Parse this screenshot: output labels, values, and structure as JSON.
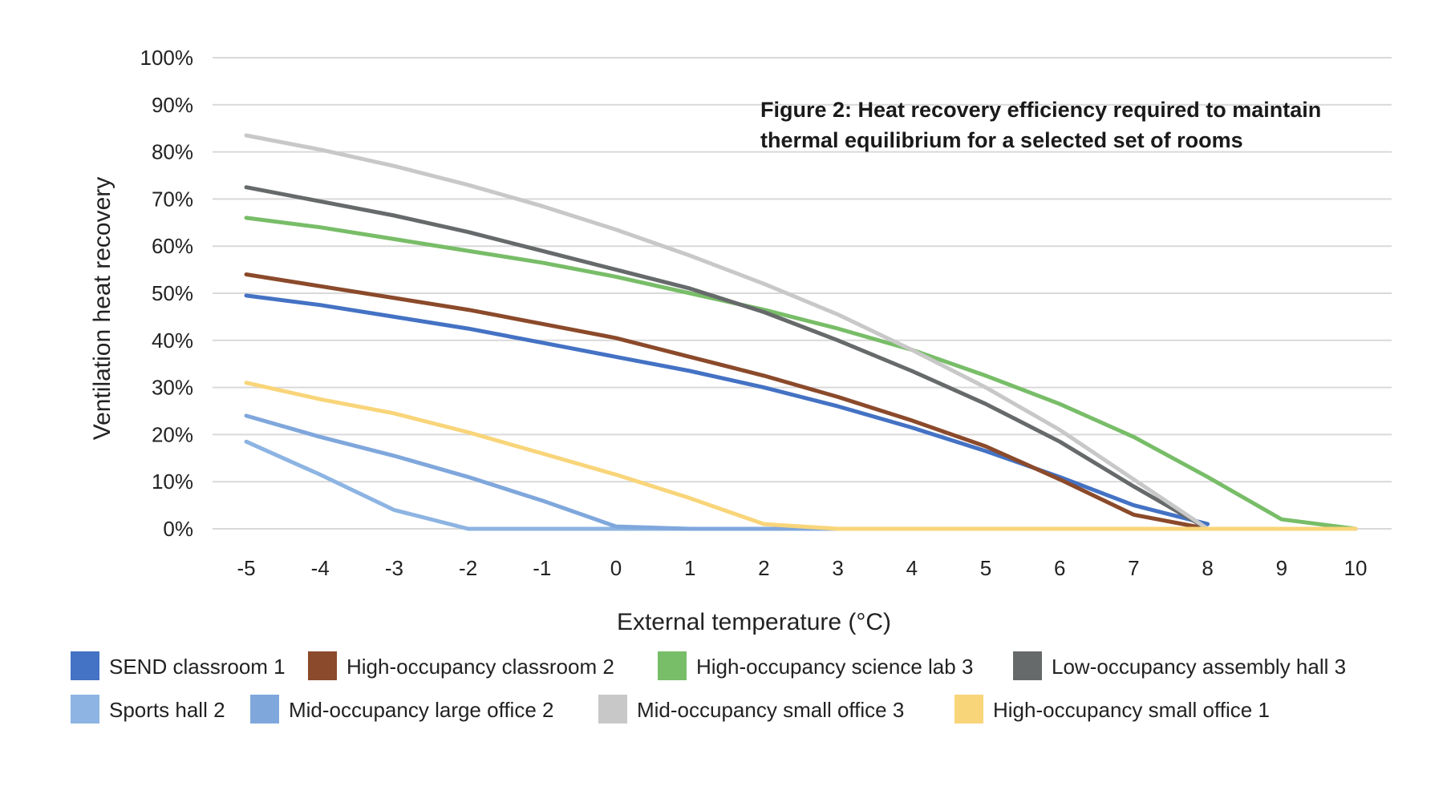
{
  "chart_data": {
    "type": "line",
    "title": "Figure 2: Heat recovery efficiency required to maintain thermal equilibrium for a selected set of rooms",
    "title_lines": [
      "Figure 2: Heat recovery efficiency required to maintain",
      "thermal equilibrium for a selected set of rooms"
    ],
    "xlabel": "External temperature (°C)",
    "ylabel": "Ventilation heat recovery",
    "x": [
      -5,
      -4,
      -3,
      -2,
      -1,
      0,
      1,
      2,
      3,
      4,
      5,
      6,
      7,
      8,
      9,
      10
    ],
    "x_tick_labels": [
      "-5",
      "-4",
      "-3",
      "-2",
      "-1",
      "0",
      "1",
      "2",
      "3",
      "4",
      "5",
      "6",
      "7",
      "8",
      "9",
      "10"
    ],
    "y_tick_labels": [
      "0%",
      "10%",
      "20%",
      "30%",
      "40%",
      "50%",
      "60%",
      "70%",
      "80%",
      "90%",
      "100%"
    ],
    "xlim": [
      -5,
      10
    ],
    "ylim": [
      0,
      100
    ],
    "grid": true,
    "legend_position": "bottom",
    "series": [
      {
        "name": "SEND classroom 1",
        "color": "#4472c4",
        "values": [
          49.5,
          47.5,
          45,
          42.5,
          39.5,
          36.5,
          33.5,
          30,
          26,
          21.5,
          16.5,
          11,
          5,
          1,
          null,
          null
        ]
      },
      {
        "name": "High-occupancy classroom 2",
        "color": "#8b4a2b",
        "values": [
          54,
          51.5,
          49,
          46.5,
          43.5,
          40.5,
          36.5,
          32.5,
          28,
          23,
          17.5,
          10.5,
          3,
          0,
          null,
          null
        ]
      },
      {
        "name": "High-occupancy science lab 3",
        "color": "#78bd68",
        "values": [
          66,
          64,
          61.5,
          59,
          56.5,
          53.5,
          50,
          46.5,
          42.5,
          38,
          32.5,
          26.5,
          19.5,
          11,
          2,
          0
        ]
      },
      {
        "name": "Low-occupancy assembly hall 3",
        "color": "#666a6b",
        "values": [
          72.5,
          69.5,
          66.5,
          63,
          59,
          55,
          51,
          46,
          40,
          33.5,
          26.5,
          18.5,
          9,
          0,
          null,
          null
        ]
      },
      {
        "name": "Sports hall 2",
        "color": "#8db4e2",
        "values": [
          18.5,
          11.5,
          4,
          0,
          0,
          0,
          0,
          0,
          0,
          0,
          0,
          0,
          0,
          0,
          0,
          0
        ]
      },
      {
        "name": "Mid-occupancy large office 2",
        "color": "#7fa7dc",
        "values": [
          24,
          19.5,
          15.5,
          11,
          6,
          0.5,
          0,
          0,
          0,
          0,
          0,
          0,
          0,
          0,
          0,
          0
        ]
      },
      {
        "name": "Mid-occupancy small office 3",
        "color": "#c8c8c8",
        "values": [
          83.5,
          80.5,
          77,
          73,
          68.5,
          63.5,
          58,
          52,
          45.5,
          38,
          30,
          21,
          10.5,
          0,
          null,
          null
        ]
      },
      {
        "name": "High-occupancy small office 1",
        "color": "#f9d57a",
        "values": [
          31,
          27.5,
          24.5,
          20.5,
          16,
          11.5,
          6.5,
          1,
          0,
          0,
          0,
          0,
          0,
          0,
          0,
          0
        ]
      }
    ]
  }
}
